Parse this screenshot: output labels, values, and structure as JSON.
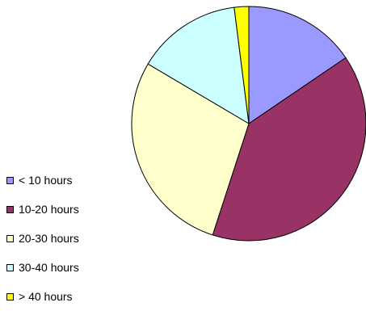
{
  "chart_data": {
    "type": "pie",
    "title": "",
    "categories": [
      "< 10 hours",
      "10-20 hours",
      "20-30 hours",
      "30-40 hours",
      "> 40 hours"
    ],
    "values": [
      15.5,
      39.5,
      28.5,
      14.5,
      2.0
    ],
    "unit": "percent (estimated)",
    "colors": [
      "#9999ff",
      "#993366",
      "#ffffcc",
      "#ccffff",
      "#ffff00"
    ],
    "stroke_color": "#000000",
    "start_angle_deg": 0,
    "direction": "clockwise",
    "legend_position": "left-bottom"
  }
}
